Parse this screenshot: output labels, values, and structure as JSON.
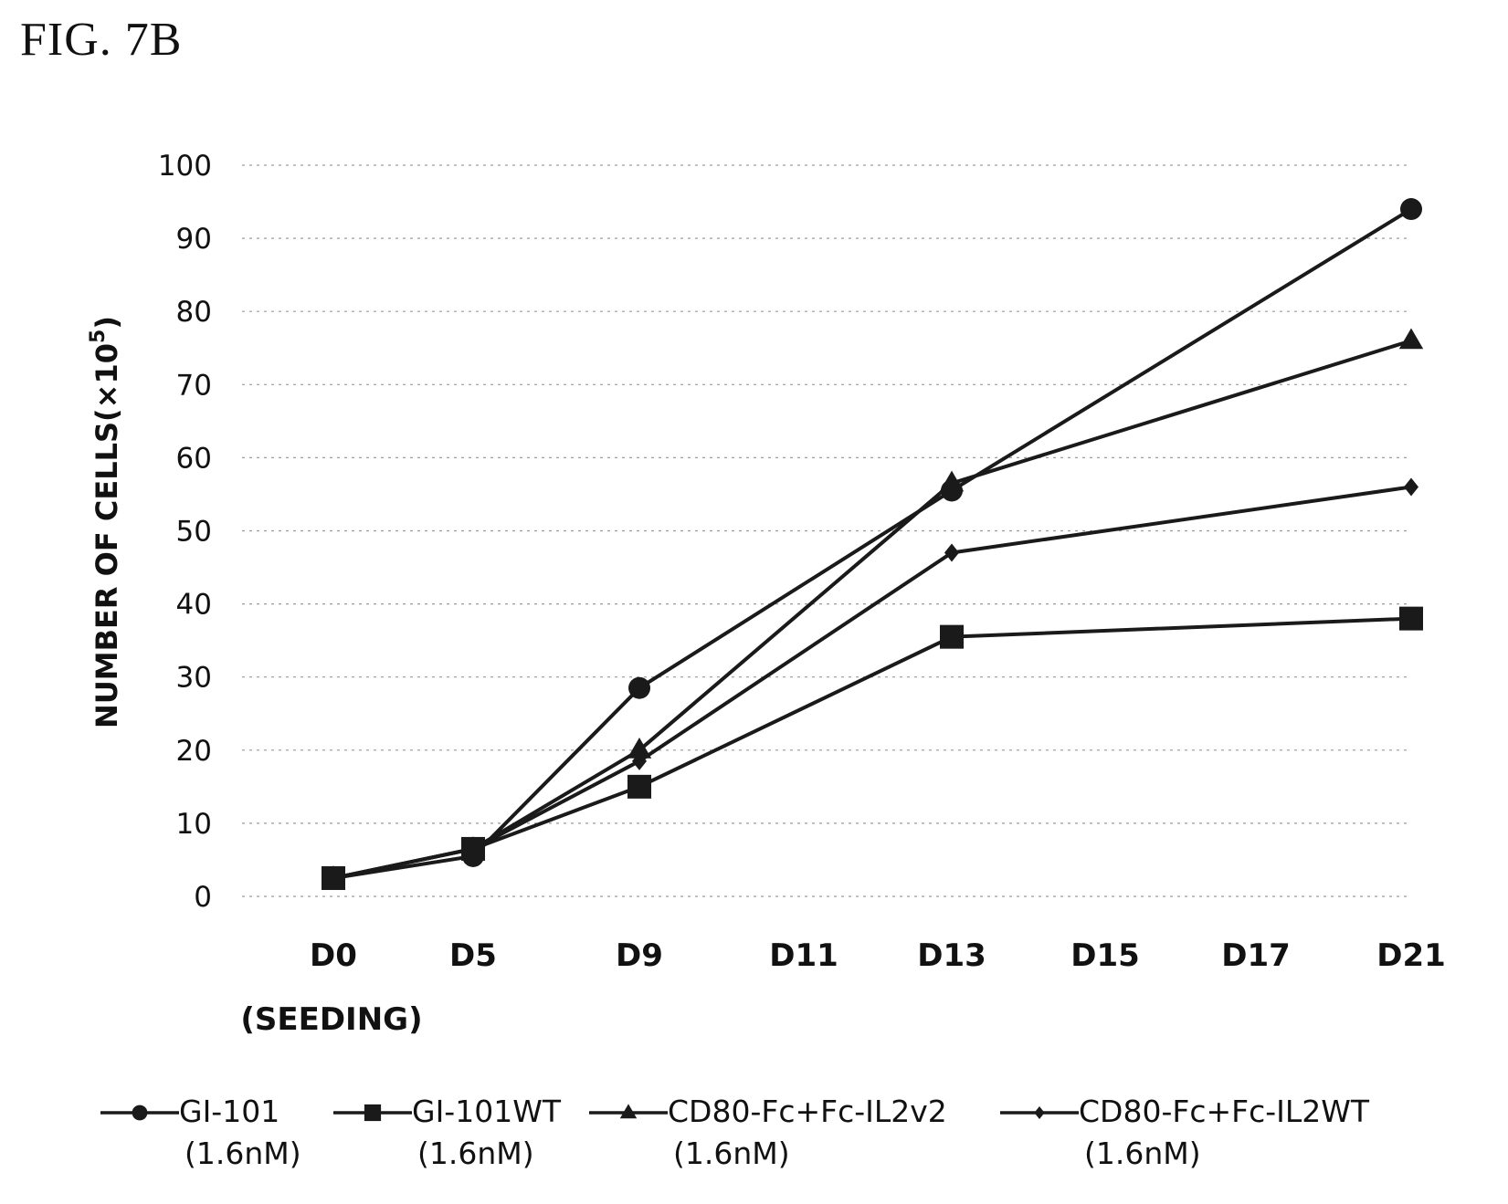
{
  "figure_label": "FIG. 7B",
  "chart_data": {
    "type": "line",
    "title": "",
    "xlabel": "",
    "ylabel": "NUMBER OF CELLS(×10",
    "ylabel_exp": "5",
    "ylabel_close": ")",
    "ylim": [
      0,
      100
    ],
    "yticks": [
      0,
      10,
      20,
      30,
      40,
      50,
      60,
      70,
      80,
      90,
      100
    ],
    "grid": "horizontal dashed",
    "legend_position": "bottom",
    "categories": [
      "D0",
      "D5",
      "D9",
      "D11",
      "D13",
      "D15",
      "D17",
      "D21"
    ],
    "category_sublabels": [
      "(SEEDING)",
      "",
      "",
      "",
      "",
      "",
      "",
      ""
    ],
    "series": [
      {
        "name": "GI-101",
        "name_sub": "(1.6nM)",
        "marker": "circle",
        "points": [
          [
            "D0",
            2.5
          ],
          [
            "D5",
            5.5
          ],
          [
            "D9",
            28.5
          ],
          [
            "D13",
            55.5
          ],
          [
            "D21",
            94
          ]
        ]
      },
      {
        "name": "GI-101WT",
        "name_sub": "(1.6nM)",
        "marker": "square",
        "points": [
          [
            "D0",
            2.5
          ],
          [
            "D5",
            6.5
          ],
          [
            "D9",
            15
          ],
          [
            "D13",
            35.5
          ],
          [
            "D21",
            38
          ]
        ]
      },
      {
        "name": "CD80-Fc+Fc-IL2v2",
        "name_sub": "(1.6nM)",
        "marker": "triangle",
        "points": [
          [
            "D0",
            2.5
          ],
          [
            "D5",
            6.5
          ],
          [
            "D9",
            20
          ],
          [
            "D13",
            56.5
          ],
          [
            "D21",
            76
          ]
        ]
      },
      {
        "name": "CD80-Fc+Fc-IL2WT",
        "name_sub": "(1.6nM)",
        "marker": "diamond",
        "points": [
          [
            "D0",
            2.5
          ],
          [
            "D5",
            6.5
          ],
          [
            "D9",
            18.5
          ],
          [
            "D13",
            47
          ],
          [
            "D21",
            56
          ]
        ]
      }
    ],
    "line_color": "#1a1a1a"
  }
}
